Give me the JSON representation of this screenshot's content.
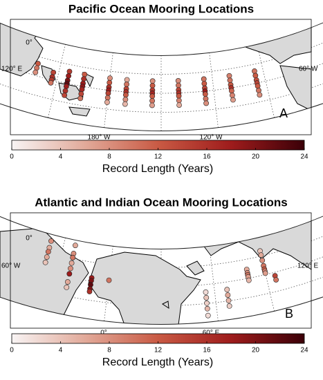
{
  "panels": [
    {
      "title": "Pacific Ocean Mooring Locations",
      "letter": "A",
      "lon_labels": [
        "0°",
        "120° E",
        "60° W",
        "180° W",
        "120° W"
      ],
      "lonlim": [
        120,
        300
      ],
      "latlim": [
        -25,
        25
      ],
      "columns": [
        {
          "lon": 137,
          "lat": [
            8,
            5,
            2
          ],
          "years": [
            12,
            10,
            8
          ]
        },
        {
          "lon": 147,
          "lat": [
            5,
            2,
            0,
            -2
          ],
          "years": [
            14,
            16,
            15,
            10
          ]
        },
        {
          "lon": 156,
          "lat": [
            8,
            5,
            2,
            0,
            -2,
            -5,
            -8
          ],
          "years": [
            15,
            18,
            20,
            22,
            18,
            16,
            14
          ]
        },
        {
          "lon": 165,
          "lat": [
            8,
            5,
            2,
            0,
            -2,
            -5,
            -8
          ],
          "years": [
            12,
            16,
            18,
            19,
            17,
            14,
            10
          ]
        },
        {
          "lon": 180,
          "lat": [
            8,
            5,
            2,
            0,
            -2,
            -5,
            -8
          ],
          "years": [
            8,
            12,
            16,
            18,
            14,
            10,
            6
          ]
        },
        {
          "lon": 190,
          "lat": [
            8,
            5,
            2,
            0,
            -2,
            -5,
            -8
          ],
          "years": [
            6,
            10,
            14,
            16,
            12,
            8,
            5
          ]
        },
        {
          "lon": 205,
          "lat": [
            8,
            5,
            2,
            0,
            -2,
            -5,
            -8
          ],
          "years": [
            8,
            12,
            15,
            17,
            12,
            10,
            7
          ]
        },
        {
          "lon": 220,
          "lat": [
            8,
            5,
            2,
            0,
            -2,
            -5,
            -8
          ],
          "years": [
            8,
            10,
            14,
            16,
            12,
            9,
            6
          ]
        },
        {
          "lon": 235,
          "lat": [
            8,
            5,
            2,
            0,
            -2,
            -5,
            -8
          ],
          "years": [
            10,
            12,
            14,
            18,
            12,
            10,
            8
          ]
        },
        {
          "lon": 250,
          "lat": [
            8,
            5,
            2,
            0,
            -2,
            -5,
            -8
          ],
          "years": [
            9,
            10,
            12,
            16,
            11,
            9,
            7
          ]
        },
        {
          "lon": 265,
          "lat": [
            8,
            5,
            2,
            0,
            -2,
            -5,
            -8
          ],
          "years": [
            10,
            12,
            13,
            14,
            12,
            10,
            8
          ]
        }
      ],
      "colorbar": {
        "label": "Record Length (Years)",
        "lim": [
          0,
          24
        ],
        "ticks": [
          0,
          4,
          8,
          12,
          16,
          20,
          24
        ],
        "colormap": [
          "#f8f4f4",
          "#e2aa9a",
          "#c95a44",
          "#9e1c1c",
          "#3b0008"
        ]
      }
    },
    {
      "title": "Atlantic and Indian Ocean Mooring Locations",
      "letter": "B",
      "lon_labels": [
        "0°",
        "60° W",
        "120° E",
        "0°",
        "60° E"
      ],
      "lonlim": [
        -60,
        120
      ],
      "latlim": [
        -30,
        25
      ],
      "columns": [
        {
          "lon": -38,
          "lat": [
            20,
            15,
            12,
            8,
            4
          ],
          "years": [
            8,
            6,
            10,
            6,
            4
          ]
        },
        {
          "lon": -23,
          "lat": [
            21,
            15,
            12,
            8,
            4,
            0,
            -6,
            -10
          ],
          "years": [
            6,
            8,
            10,
            6,
            8,
            18,
            6,
            4
          ]
        },
        {
          "lon": -10,
          "lat": [
            0,
            -2,
            -5,
            -8,
            -10
          ],
          "years": [
            18,
            20,
            22,
            20,
            16
          ]
        },
        {
          "lon": 0,
          "lat": [
            0
          ],
          "years": [
            10
          ]
        },
        {
          "lon": 55,
          "lat": [
            -8,
            -12,
            -16,
            -20,
            -25
          ],
          "years": [
            2,
            4,
            3,
            5,
            2
          ]
        },
        {
          "lon": 67,
          "lat": [
            -8,
            -12,
            -16,
            -20
          ],
          "years": [
            4,
            6,
            5,
            3
          ]
        },
        {
          "lon": 80,
          "lat": [
            4,
            1.5,
            0,
            -1.5,
            -4
          ],
          "years": [
            6,
            8,
            10,
            7,
            5
          ]
        },
        {
          "lon": 90,
          "lat": [
            15,
            12,
            8,
            4,
            1.5,
            0,
            -1.5
          ],
          "years": [
            4,
            6,
            8,
            10,
            12,
            9,
            7
          ]
        },
        {
          "lon": 95,
          "lat": [
            -5,
            -8
          ],
          "years": [
            14,
            10
          ]
        }
      ],
      "colorbar": {
        "label": "Record Length (Years)",
        "lim": [
          0,
          24
        ],
        "ticks": [
          0,
          4,
          8,
          12,
          16,
          20,
          24
        ],
        "colormap": [
          "#f8f4f4",
          "#e2aa9a",
          "#c95a44",
          "#9e1c1c",
          "#3b0008"
        ]
      }
    }
  ]
}
